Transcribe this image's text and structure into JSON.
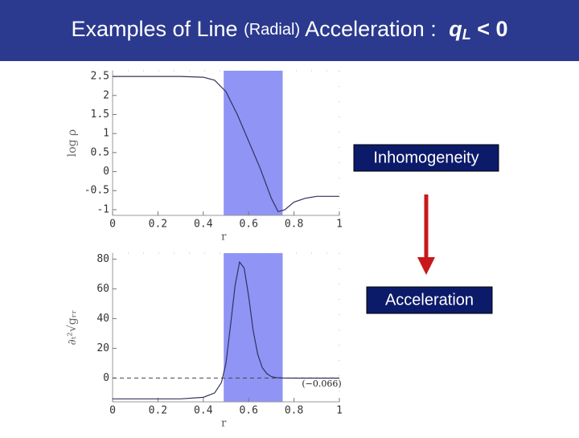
{
  "slide": {
    "title": [
      "Examples of Line",
      "(Radial)",
      "Acceleration :",
      "q",
      "L",
      "< 0"
    ],
    "box_top": "Inhomogeneity",
    "box_bottom": "Acceleration"
  },
  "chart_data": [
    {
      "type": "line",
      "x_label": "r",
      "y_label": "log ρ",
      "x": [
        0,
        0.1,
        0.2,
        0.3,
        0.4,
        0.45,
        0.5,
        0.55,
        0.6,
        0.65,
        0.7,
        0.73,
        0.76,
        0.8,
        0.85,
        0.9,
        0.95,
        1
      ],
      "values": [
        2.5,
        2.5,
        2.5,
        2.5,
        2.48,
        2.4,
        2.1,
        1.5,
        0.8,
        0.1,
        -0.7,
        -1.05,
        -1.0,
        -0.8,
        -0.7,
        -0.65,
        -0.65,
        -0.65
      ],
      "color": "#33335a",
      "band": [
        0.49,
        0.75
      ],
      "band_color": "#8f94f5",
      "xlim": [
        0,
        1
      ],
      "xticks": [
        0,
        0.2,
        0.4,
        0.6,
        0.8,
        1
      ],
      "ylim": [
        -1.15,
        2.65
      ],
      "yticks": [
        -1,
        -0.5,
        0,
        0.5,
        1,
        1.5,
        2,
        2.5
      ]
    },
    {
      "type": "line",
      "x_label": "r",
      "y_label": "∂ₜ²√gᵣᵣ",
      "x": [
        0,
        0.1,
        0.2,
        0.3,
        0.4,
        0.45,
        0.48,
        0.5,
        0.52,
        0.54,
        0.56,
        0.58,
        0.6,
        0.62,
        0.64,
        0.66,
        0.68,
        0.7,
        0.72,
        0.75,
        0.8,
        0.9,
        1
      ],
      "values": [
        -14,
        -14,
        -14,
        -14,
        -13,
        -10,
        -3,
        10,
        35,
        62,
        78,
        74,
        55,
        32,
        16,
        7,
        3,
        1,
        0.3,
        0,
        -0.066,
        -0.066,
        -0.066
      ],
      "color": "#33335a",
      "band": [
        0.49,
        0.75
      ],
      "band_color": "#8f94f5",
      "reference_line": 0,
      "annotation": "(−0.066)",
      "xlim": [
        0,
        1
      ],
      "xticks": [
        0,
        0.2,
        0.4,
        0.6,
        0.8,
        1
      ],
      "ylim": [
        -16,
        84
      ],
      "yticks": [
        0,
        20,
        40,
        60,
        80
      ]
    }
  ]
}
